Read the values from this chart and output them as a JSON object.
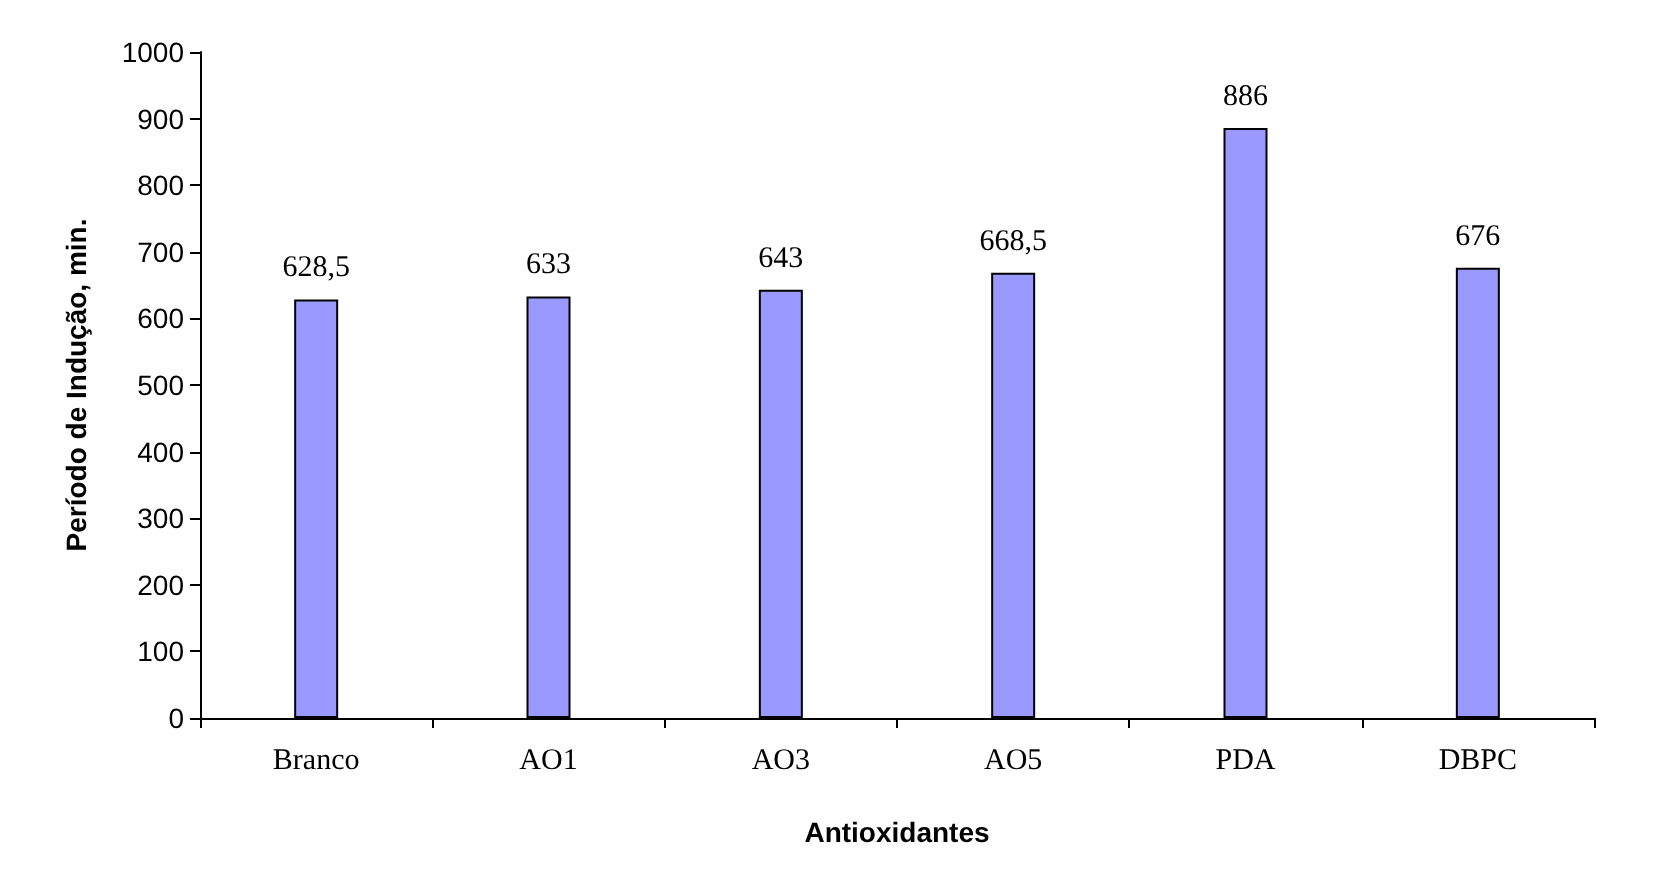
{
  "chart_data": {
    "type": "bar",
    "xlabel": "Antioxidantes",
    "ylabel": "Período de Indução, min.",
    "categories": [
      "Branco",
      "AO1",
      "AO3",
      "AO5",
      "PDA",
      "DBPC"
    ],
    "values": [
      628.5,
      633,
      643,
      668.5,
      886,
      676
    ],
    "value_labels": [
      "628,5",
      "633",
      "643",
      "668,5",
      "886",
      "676"
    ],
    "color": "#9999ff",
    "ylim": [
      0,
      1000
    ],
    "yticks": [
      0,
      100,
      200,
      300,
      400,
      500,
      600,
      700,
      800,
      900,
      1000
    ],
    "grid": false
  }
}
